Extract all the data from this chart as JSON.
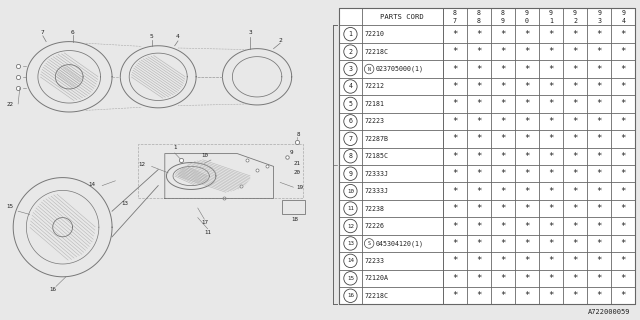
{
  "diagram_code": "A722000059",
  "rows": [
    {
      "num": "1",
      "part": "72210",
      "prefix": null
    },
    {
      "num": "2",
      "part": "72218C",
      "prefix": null
    },
    {
      "num": "3",
      "part": "023705000(1)",
      "prefix": "N"
    },
    {
      "num": "4",
      "part": "72212",
      "prefix": null
    },
    {
      "num": "5",
      "part": "72181",
      "prefix": null
    },
    {
      "num": "6",
      "part": "72223",
      "prefix": null
    },
    {
      "num": "7",
      "part": "72287B",
      "prefix": null
    },
    {
      "num": "8",
      "part": "72185C",
      "prefix": null
    },
    {
      "num": "9",
      "part": "72333J",
      "prefix": null
    },
    {
      "num": "10",
      "part": "72333J",
      "prefix": null
    },
    {
      "num": "11",
      "part": "72238",
      "prefix": null
    },
    {
      "num": "12",
      "part": "72226",
      "prefix": null
    },
    {
      "num": "13",
      "part": "045304120(1)",
      "prefix": "S"
    },
    {
      "num": "14",
      "part": "72233",
      "prefix": null
    },
    {
      "num": "15",
      "part": "72120A",
      "prefix": null
    },
    {
      "num": "16",
      "part": "72218C",
      "prefix": null
    }
  ],
  "year_cols": [
    "8\n7",
    "8\n8",
    "8\n9",
    "9\n0",
    "9\n1",
    "9\n2",
    "9\n3",
    "9\n4"
  ],
  "bg_color": "#f0f0f0",
  "line_color": "#666666",
  "text_color": "#222222"
}
